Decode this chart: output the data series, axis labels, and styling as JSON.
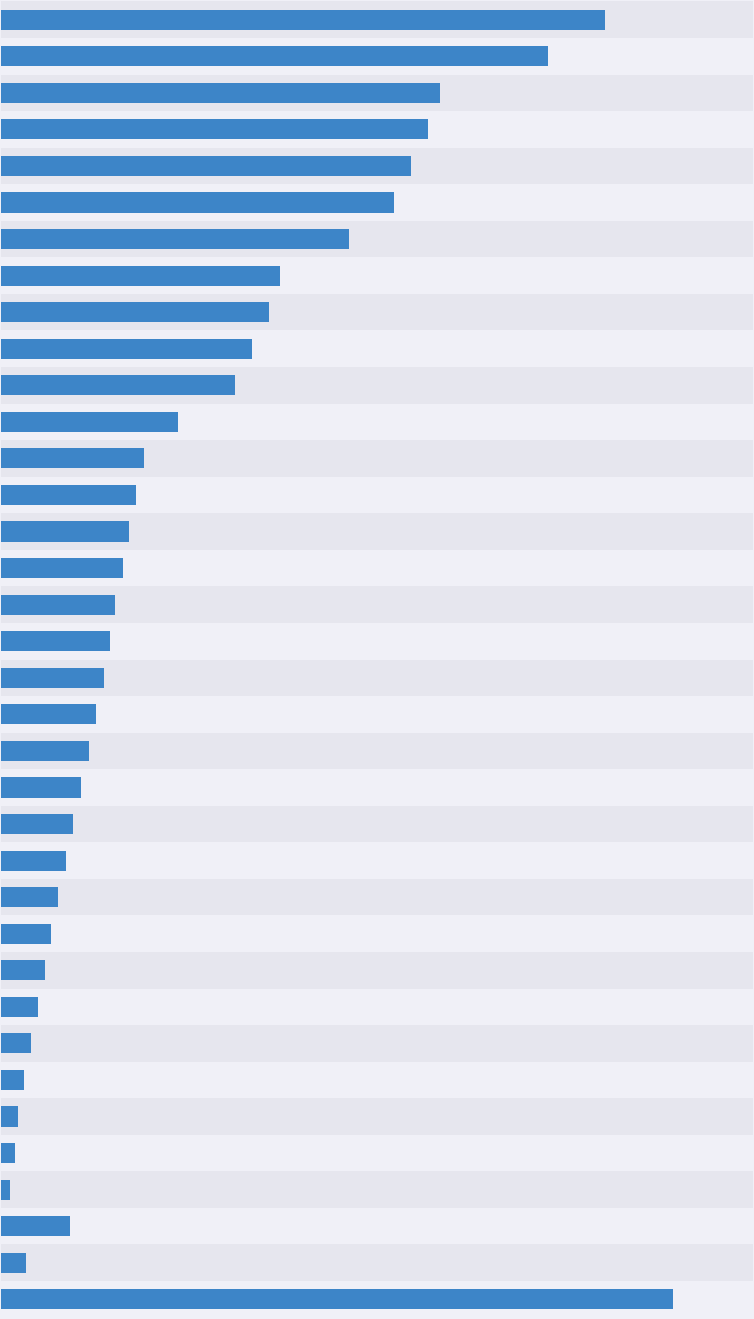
{
  "values": [
    530,
    480,
    385,
    375,
    360,
    345,
    305,
    245,
    235,
    220,
    205,
    155,
    125,
    118,
    112,
    107,
    100,
    95,
    90,
    83,
    77,
    70,
    63,
    57,
    50,
    44,
    38,
    32,
    26,
    20,
    15,
    12,
    8,
    60,
    22,
    590
  ],
  "bar_color": "#3d85c8",
  "bg_color_light": "#f2f2f7",
  "bg_color_dark": "#e8e8f0",
  "gridline_color": "#cccccc",
  "figsize": [
    7.54,
    13.19
  ],
  "dpi": 100,
  "xlim": 660,
  "bar_height": 0.55
}
